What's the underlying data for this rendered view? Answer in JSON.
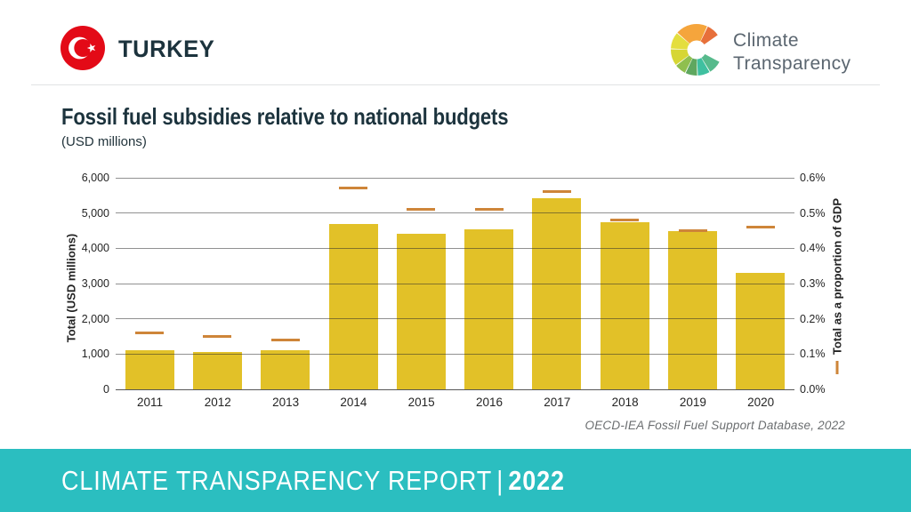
{
  "header": {
    "country": "TURKEY",
    "logo": {
      "line1": "Climate",
      "line2": "Transparency"
    }
  },
  "chart_data": {
    "type": "bar",
    "title": "Fossil fuel subsidies relative to national budgets",
    "subtitle_unit": "(USD millions)",
    "categories": [
      "2011",
      "2012",
      "2013",
      "2014",
      "2015",
      "2016",
      "2017",
      "2018",
      "2019",
      "2020"
    ],
    "series": [
      {
        "name": "Total (USD millions)",
        "plot": "bar",
        "axis": "left",
        "values": [
          1100,
          1060,
          1100,
          4680,
          4420,
          4540,
          5430,
          4740,
          4480,
          3310
        ]
      },
      {
        "name": "Total as a proportion of GDP",
        "plot": "dash",
        "axis": "right",
        "values": [
          0.16,
          0.15,
          0.14,
          0.57,
          0.51,
          0.51,
          0.56,
          0.48,
          0.45,
          0.46
        ]
      }
    ],
    "left_axis": {
      "label": "Total (USD millions)",
      "min": 0,
      "max": 6000,
      "tick_step": 1000,
      "tick_values": [
        0,
        1000,
        2000,
        3000,
        4000,
        5000,
        6000
      ],
      "tick_labels": [
        "0",
        "1,000",
        "2,000",
        "3,000",
        "4,000",
        "5,000",
        "6,000"
      ]
    },
    "right_axis": {
      "label": "Total as a proportion of GDP",
      "min": 0,
      "max": 0.6,
      "tick_step": 0.1,
      "tick_values": [
        0,
        0.1,
        0.2,
        0.3,
        0.4,
        0.5,
        0.6
      ],
      "tick_labels": [
        "0.0%",
        "0.1%",
        "0.2%",
        "0.3%",
        "0.4%",
        "0.5%",
        "0.6%"
      ]
    },
    "grid": true,
    "legend_position": "right-axis-label",
    "source": "OECD-IEA Fossil Fuel Support Database, 2022"
  },
  "footer": {
    "report_title": "CLIMATE TRANSPARENCY REPORT",
    "separator": "|",
    "year": "2022"
  },
  "colors": {
    "bar": "#E2C128",
    "gdp_dash": "#CE8539",
    "banner_teal": "#2BBEC0",
    "flag_red": "#E30A17",
    "heading_text": "#1C333D",
    "logo_text": "#5B6670",
    "gridline": "#8C8C8C"
  }
}
